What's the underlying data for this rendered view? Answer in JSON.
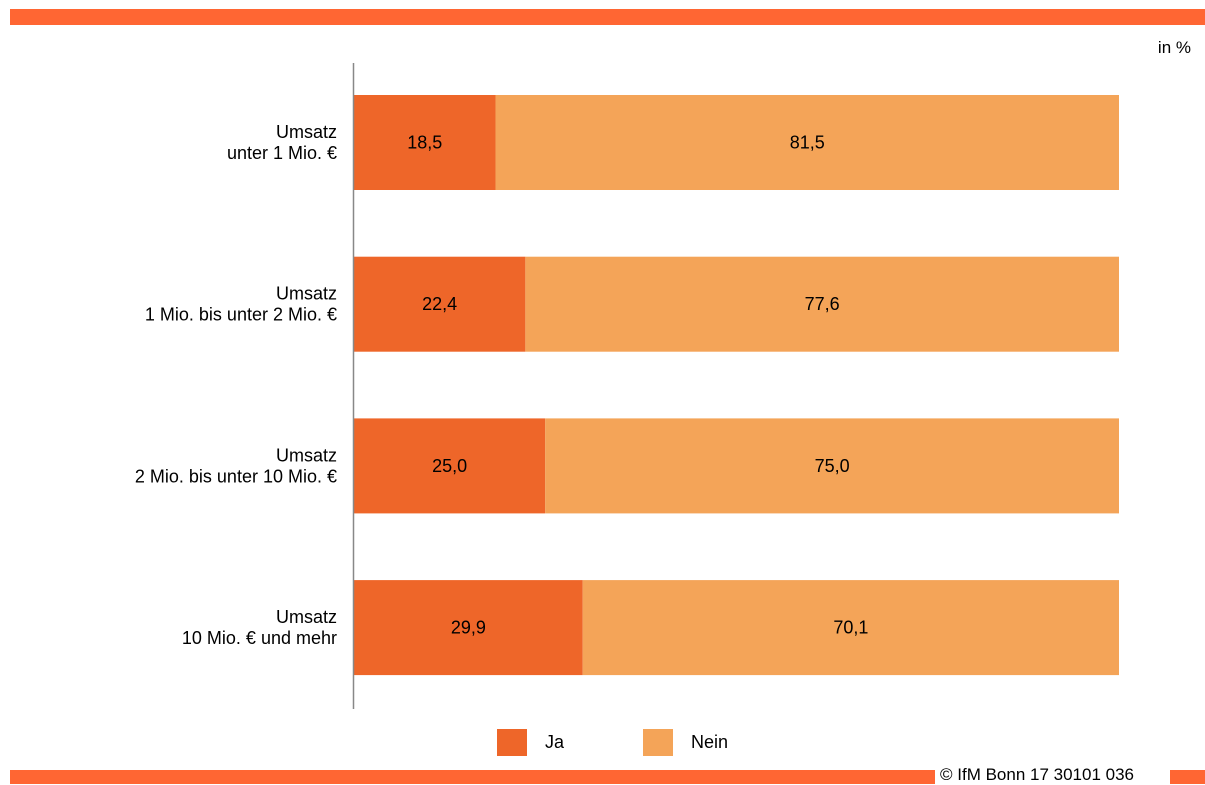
{
  "unit_label": "in %",
  "copyright": "© IfM Bonn 17 30101 036",
  "colors": {
    "ja": "#ee6629",
    "nein": "#f4a458",
    "accent": "#ff6633"
  },
  "legend": [
    {
      "label": "Ja",
      "color": "#ee6629"
    },
    {
      "label": "Nein",
      "color": "#f4a458"
    }
  ],
  "chart_data": {
    "type": "bar",
    "orientation": "horizontal",
    "stacked": true,
    "xlim": [
      0,
      100
    ],
    "unit": "in %",
    "categories": [
      [
        "Umsatz",
        "unter 1 Mio. €"
      ],
      [
        "Umsatz",
        "1 Mio. bis unter 2 Mio. €"
      ],
      [
        "Umsatz",
        "2 Mio. bis unter 10 Mio. €"
      ],
      [
        "Umsatz",
        "10 Mio. € und mehr"
      ]
    ],
    "series": [
      {
        "name": "Ja",
        "values": [
          18.5,
          22.4,
          25.0,
          29.9
        ],
        "labels": [
          "18,5",
          "22,4",
          "25,0",
          "29,9"
        ]
      },
      {
        "name": "Nein",
        "values": [
          81.5,
          77.6,
          75.0,
          70.1
        ],
        "labels": [
          "81,5",
          "77,6",
          "75,0",
          "70,1"
        ]
      }
    ],
    "legend_position": "bottom-center",
    "grid": false
  }
}
